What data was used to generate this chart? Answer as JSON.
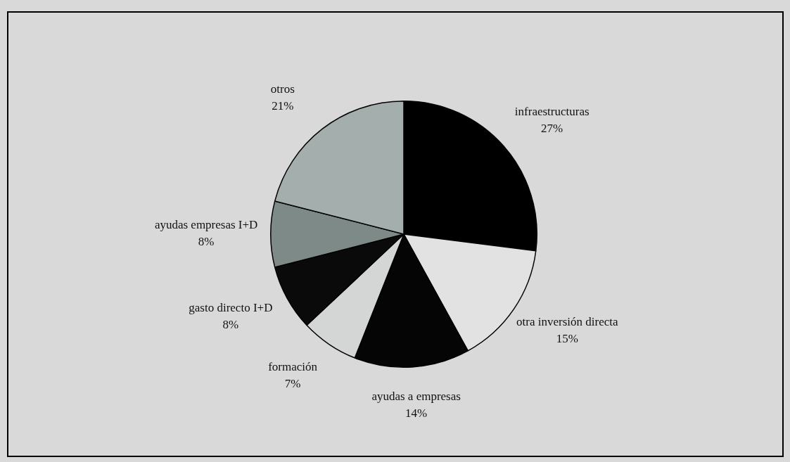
{
  "chart_data": {
    "type": "pie",
    "categories": [
      "infraestructuras",
      "otra inversión directa",
      "ayudas a empresas",
      "formación",
      "gasto directo I+D",
      "ayudas empresas I+D",
      "otros"
    ],
    "values": [
      27,
      15,
      14,
      7,
      8,
      8,
      21
    ],
    "value_labels": [
      "27%",
      "15%",
      "14%",
      "7%",
      "8%",
      "8%",
      "21%"
    ],
    "colors": [
      "#000000",
      "#e2e2e2",
      "#050505",
      "#d4d6d6",
      "#0a0a0a",
      "#7e8a88",
      "#a4aeac"
    ],
    "legend": false
  }
}
